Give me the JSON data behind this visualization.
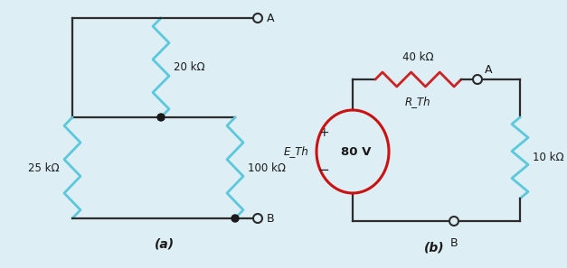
{
  "bg_color": "#ddeef5",
  "wire_color": "#2c2c2c",
  "resistor_color_a": "#5bc8dc",
  "resistor_color_b_horiz": "#cc2222",
  "resistor_color_b_vert": "#5bc8dc",
  "node_color": "#1a1a1a",
  "label_color": "#1a1a1a",
  "title_a": "(a)",
  "title_b": "(b)",
  "res_a_20k": "20 kΩ",
  "res_a_25k": "25 kΩ",
  "res_a_100k": "100 kΩ",
  "res_b_40k": "40 kΩ",
  "res_b_rth": "R_Th",
  "res_b_10k": "10 kΩ",
  "volt_label": "80 V",
  "eth_label": "E_Th",
  "plus_label": "+",
  "minus_label": "−",
  "terminal_A": "A",
  "terminal_B": "B",
  "figsize": [
    6.27,
    2.97
  ],
  "dpi": 100
}
